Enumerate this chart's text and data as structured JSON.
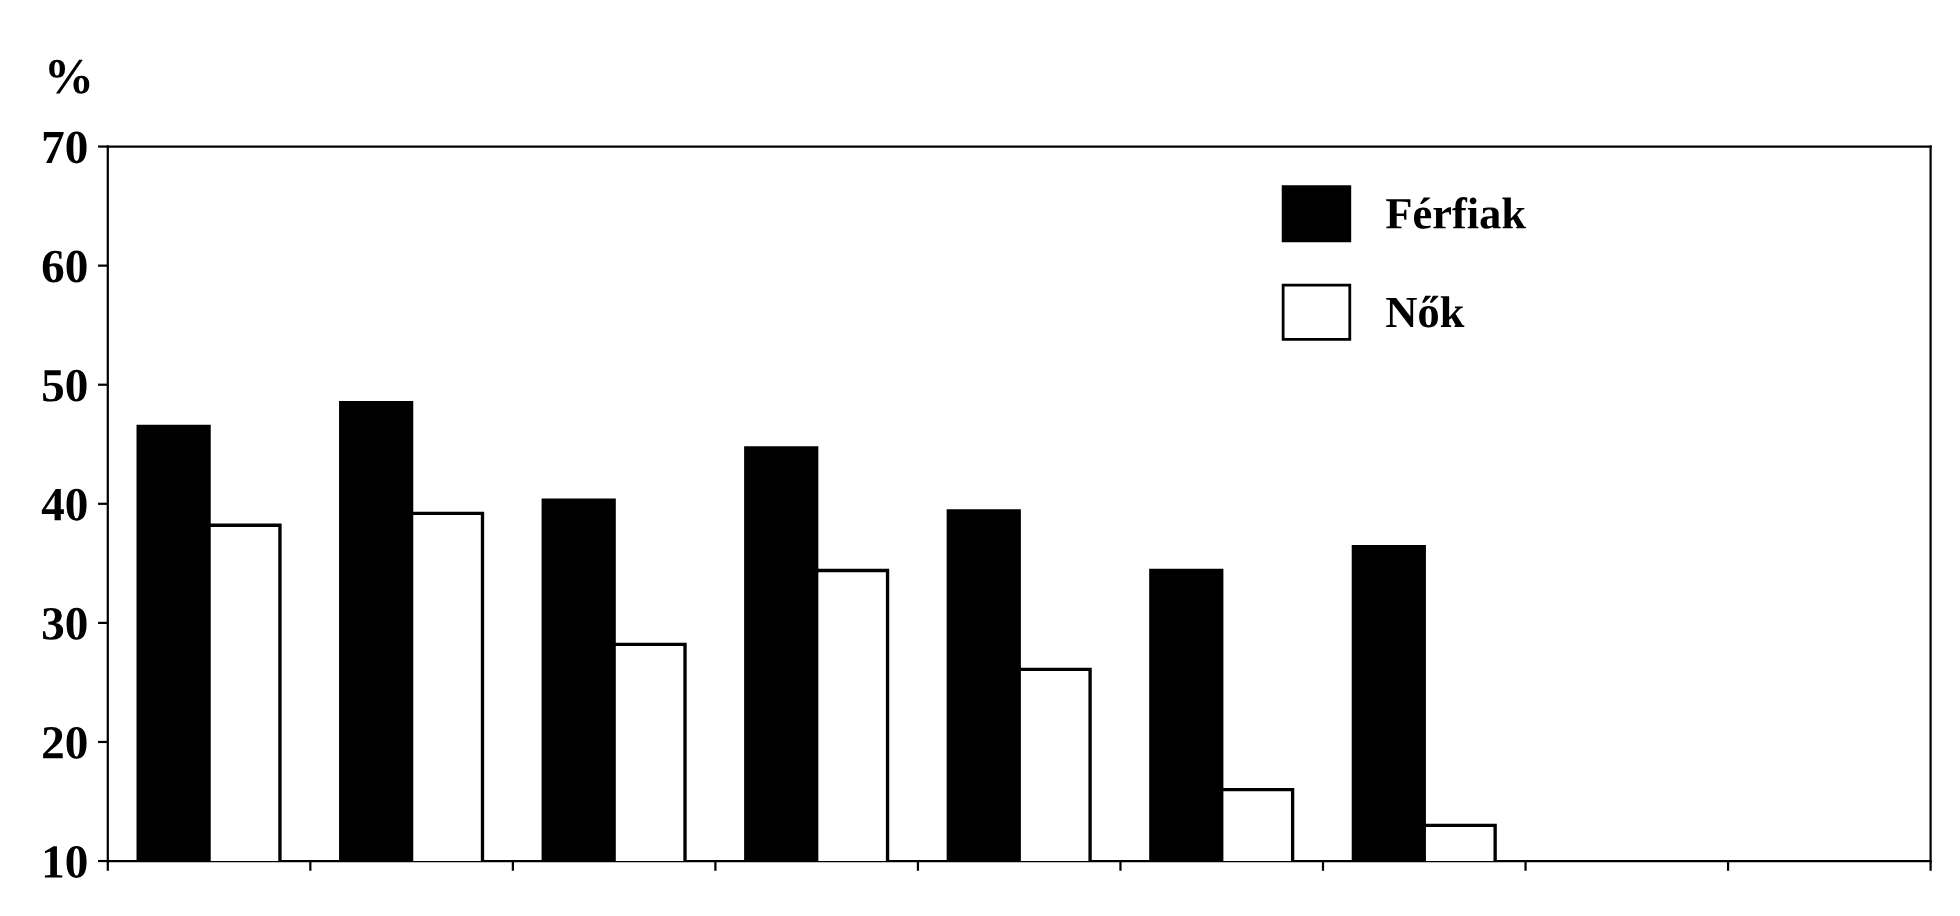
{
  "chart_data": {
    "type": "bar",
    "ylabel": "%",
    "categories": [
      null,
      null,
      null,
      null,
      null,
      null,
      null,
      null,
      null
    ],
    "series": [
      {
        "name": "Férfiak",
        "color": "#000000",
        "values": [
          46.5,
          48.5,
          40.3,
          44.7,
          39.4,
          34.4,
          36.4,
          null,
          null
        ]
      },
      {
        "name": "Nők",
        "color": "#ffffff",
        "values": [
          38.2,
          39.2,
          28.2,
          34.4,
          26.1,
          16,
          13,
          null,
          null
        ]
      }
    ],
    "ylim": [
      10,
      70
    ],
    "yticks": [
      10,
      20,
      30,
      40,
      50,
      60,
      70
    ],
    "grid": false,
    "legend": "top right"
  }
}
